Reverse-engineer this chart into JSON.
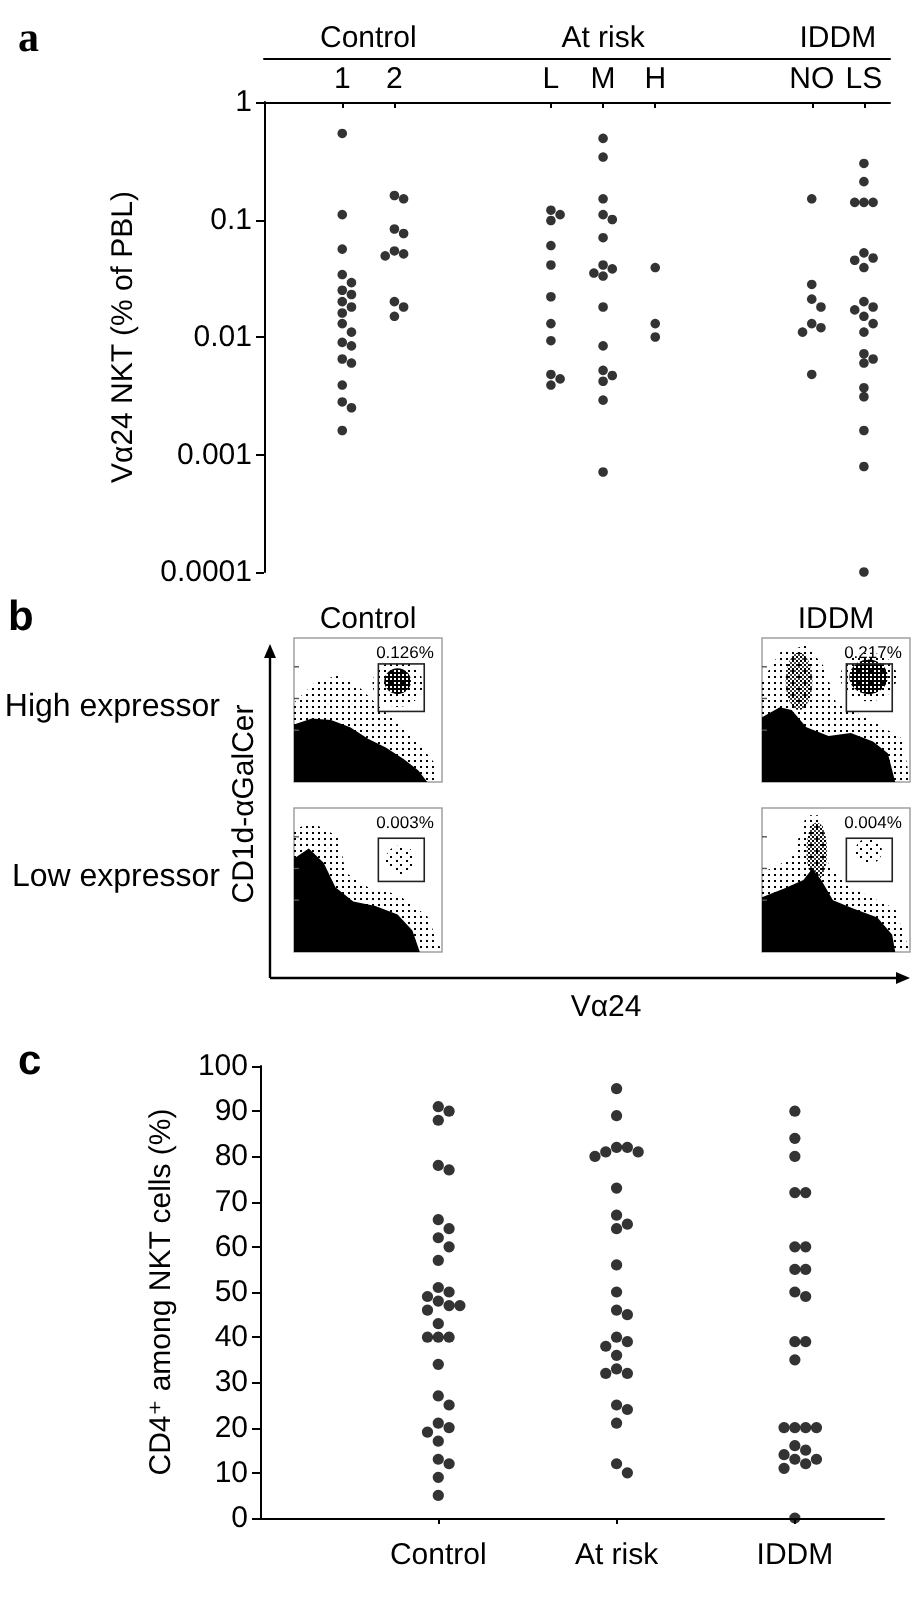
{
  "chart_data": [
    {
      "type": "scatter",
      "title": "a",
      "ylabel": "Vα24 NKT (% of PBL)",
      "categories": [
        null,
        "1",
        "2",
        null,
        null,
        "L",
        "M",
        "H",
        null,
        null,
        "NO",
        "LS"
      ],
      "annotations": [
        "Control",
        "At risk",
        "IDDM"
      ],
      "log": "y",
      "ylim": [
        0.0001,
        1
      ],
      "yticks": [
        0.0001,
        0.001,
        0.01,
        0.1,
        1
      ],
      "marker": "circle",
      "series": [
        {
          "color": "#000000",
          "x": [
            "1",
            "1",
            "1",
            "1",
            "1",
            "1",
            "1",
            "1",
            "1",
            "1",
            "1",
            "1",
            "1",
            "1",
            "1",
            "1",
            "1",
            "1",
            "1",
            "1",
            "2",
            "2",
            "2",
            "2",
            "2",
            "2",
            "2",
            "2",
            "2",
            "2",
            "L",
            "L",
            "L",
            "L",
            "L",
            "L",
            "L",
            "L",
            "L",
            "L",
            "L",
            "M",
            "M",
            "M",
            "M",
            "M",
            "M",
            "M",
            "M",
            "M",
            "M",
            "M",
            "M",
            "M",
            "M",
            "M",
            "M",
            "M",
            "H",
            "H",
            "H",
            "NO",
            "NO",
            "NO",
            "NO",
            "NO",
            "NO",
            "NO",
            "NO",
            "LS",
            "LS",
            "LS",
            "LS",
            "LS",
            "LS",
            "LS",
            "LS",
            "LS",
            "LS",
            "LS",
            "LS",
            "LS",
            "LS",
            "LS",
            "LS",
            "LS",
            "LS",
            "LS",
            "LS",
            "LS",
            "LS",
            "LS"
          ],
          "values": [
            0.54,
            0.11,
            0.056,
            0.034,
            0.029,
            0.025,
            0.023,
            0.02,
            0.018,
            0.016,
            0.013,
            0.011,
            0.009,
            0.0084,
            0.0065,
            0.006,
            0.0039,
            0.0028,
            0.0025,
            0.0016,
            0.16,
            0.15,
            0.083,
            0.076,
            0.054,
            0.051,
            0.049,
            0.02,
            0.018,
            0.015,
            0.12,
            0.11,
            0.098,
            0.06,
            0.041,
            0.022,
            0.013,
            0.0093,
            0.0048,
            0.0044,
            0.0039,
            0.49,
            0.34,
            0.15,
            0.11,
            0.1,
            0.07,
            0.041,
            0.038,
            0.035,
            0.033,
            0.018,
            0.0084,
            0.0052,
            0.0047,
            0.0042,
            0.0029,
            0.00071,
            0.039,
            0.013,
            0.01,
            0.15,
            0.028,
            0.021,
            0.018,
            0.013,
            0.012,
            0.011,
            0.0048,
            0.3,
            0.21,
            0.14,
            0.14,
            0.14,
            0.052,
            0.047,
            0.045,
            0.039,
            0.02,
            0.018,
            0.017,
            0.015,
            0.013,
            0.011,
            0.0072,
            0.0065,
            0.006,
            0.0037,
            0.0031,
            0.0016,
            0.00079,
            0.0001
          ]
        }
      ]
    },
    {
      "type": "other",
      "title": "b",
      "xlabel": "Vα24",
      "ylabel": "CD1d-αGalCer",
      "categories": [
        "Control",
        "IDDM"
      ],
      "y_categories": [
        "High expressor",
        "Low expressor"
      ],
      "cell_labels": [
        [
          "0.126%",
          "0.217%"
        ],
        [
          "0.003%",
          "0.004%"
        ]
      ]
    },
    {
      "type": "scatter",
      "title": "c",
      "ylabel": "CD4⁺ among NKT cells (%)",
      "categories": [
        null,
        null,
        "Control",
        null,
        "At risk",
        null,
        "IDDM",
        null
      ],
      "ylim": [
        0,
        100
      ],
      "yticks": [
        0,
        10,
        20,
        30,
        40,
        50,
        60,
        70,
        80,
        90,
        100
      ],
      "marker": "circle",
      "series": [
        {
          "color": "#000000",
          "x": [
            "Control",
            "Control",
            "Control",
            "Control",
            "Control",
            "Control",
            "Control",
            "Control",
            "Control",
            "Control",
            "Control",
            "Control",
            "Control",
            "Control",
            "Control",
            "Control",
            "Control",
            "Control",
            "Control",
            "Control",
            "Control",
            "Control",
            "Control",
            "Control",
            "Control",
            "Control",
            "Control",
            "Control",
            "Control",
            "Control",
            "Control",
            "Control",
            "At risk",
            "At risk",
            "At risk",
            "At risk",
            "At risk",
            "At risk",
            "At risk",
            "At risk",
            "At risk",
            "At risk",
            "At risk",
            "At risk",
            "At risk",
            "At risk",
            "At risk",
            "At risk",
            "At risk",
            "At risk",
            "At risk",
            "At risk",
            "At risk",
            "At risk",
            "At risk",
            "At risk",
            "At risk",
            "At risk",
            "At risk",
            "IDDM",
            "IDDM",
            "IDDM",
            "IDDM",
            "IDDM",
            "IDDM",
            "IDDM",
            "IDDM",
            "IDDM",
            "IDDM",
            "IDDM",
            "IDDM",
            "IDDM",
            "IDDM",
            "IDDM",
            "IDDM",
            "IDDM",
            "IDDM",
            "IDDM",
            "IDDM",
            "IDDM",
            "IDDM",
            "IDDM",
            "IDDM",
            "IDDM",
            "IDDM"
          ],
          "values": [
            91,
            90,
            88,
            78,
            77,
            66,
            64,
            62,
            60,
            57,
            51,
            50,
            49,
            48,
            47,
            47,
            46,
            43,
            40,
            40,
            40,
            34,
            27,
            25,
            21,
            20,
            19,
            17,
            13,
            12,
            9,
            5,
            95,
            89,
            82,
            82,
            81,
            81,
            80,
            73,
            67,
            65,
            64,
            56,
            50,
            46,
            45,
            40,
            39,
            38,
            36,
            33,
            32,
            32,
            25,
            24,
            21,
            12,
            10,
            90,
            84,
            80,
            72,
            72,
            60,
            60,
            55,
            55,
            50,
            49,
            39,
            39,
            35,
            20,
            20,
            20,
            20,
            16,
            15,
            14,
            13,
            13,
            12,
            11,
            0
          ]
        }
      ]
    }
  ]
}
